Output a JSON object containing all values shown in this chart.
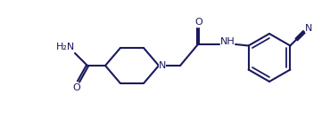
{
  "bg_color": "#ffffff",
  "line_color": "#1a1a5e",
  "lw": 1.5,
  "fs": 8.0,
  "figsize": [
    3.7,
    1.5
  ],
  "dpi": 100,
  "xlim": [
    0,
    370
  ],
  "ylim": [
    0,
    150
  ]
}
